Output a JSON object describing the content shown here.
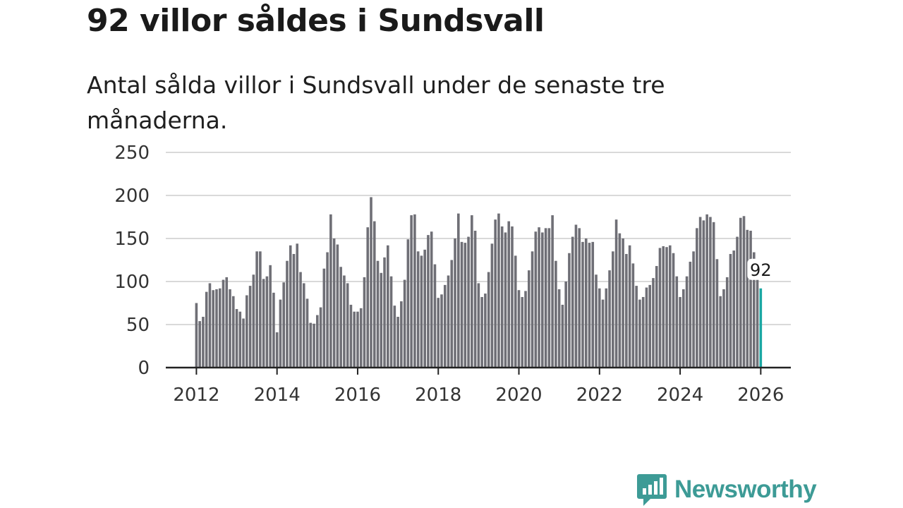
{
  "header": {
    "title": "92 villor såldes i Sundsvall",
    "subtitle": "Antal sålda villor i Sundsvall under de senaste tre månaderna."
  },
  "brand": {
    "name": "Newsworthy",
    "color": "#3d9b96"
  },
  "colors": {
    "bar": "#6f6f76",
    "highlight": "#1aa7a3",
    "grid": "#d9d9d9",
    "axis": "#222222"
  },
  "chart_data": {
    "type": "bar",
    "title": "92 villor såldes i Sundsvall",
    "subtitle": "Antal sålda villor i Sundsvall under de senaste tre månaderna.",
    "xlabel": "",
    "ylabel": "",
    "ylim": [
      0,
      250
    ],
    "yticks": [
      0,
      50,
      100,
      150,
      200,
      250
    ],
    "xticks": [
      2012,
      2014,
      2016,
      2018,
      2020,
      2022,
      2024,
      2026
    ],
    "x_start": 2012,
    "step_per_bar_years": 0.08333,
    "grid": true,
    "highlight": {
      "index": 168,
      "label": "92"
    },
    "values": [
      75,
      54,
      59,
      88,
      98,
      90,
      91,
      92,
      102,
      105,
      91,
      83,
      68,
      65,
      57,
      84,
      95,
      108,
      135,
      135,
      103,
      106,
      119,
      87,
      41,
      79,
      99,
      124,
      142,
      132,
      144,
      111,
      98,
      80,
      52,
      51,
      61,
      70,
      115,
      134,
      178,
      150,
      143,
      117,
      107,
      98,
      73,
      65,
      65,
      69,
      105,
      163,
      198,
      170,
      124,
      110,
      128,
      142,
      106,
      72,
      59,
      77,
      102,
      149,
      177,
      178,
      135,
      130,
      137,
      154,
      158,
      120,
      81,
      85,
      96,
      107,
      125,
      150,
      179,
      146,
      145,
      152,
      177,
      159,
      98,
      82,
      86,
      111,
      144,
      172,
      179,
      164,
      157,
      170,
      164,
      130,
      90,
      82,
      89,
      113,
      135,
      158,
      163,
      157,
      162,
      162,
      177,
      124,
      91,
      73,
      100,
      133,
      152,
      166,
      162,
      146,
      150,
      145,
      146,
      108,
      92,
      79,
      92,
      113,
      135,
      172,
      156,
      150,
      132,
      142,
      121,
      95,
      79,
      82,
      93,
      96,
      104,
      118,
      139,
      141,
      140,
      142,
      133,
      106,
      82,
      91,
      106,
      123,
      135,
      162,
      175,
      171,
      178,
      175,
      169,
      126,
      83,
      91,
      105,
      132,
      136,
      152,
      174,
      176,
      160,
      159,
      134,
      106,
      92
    ]
  }
}
